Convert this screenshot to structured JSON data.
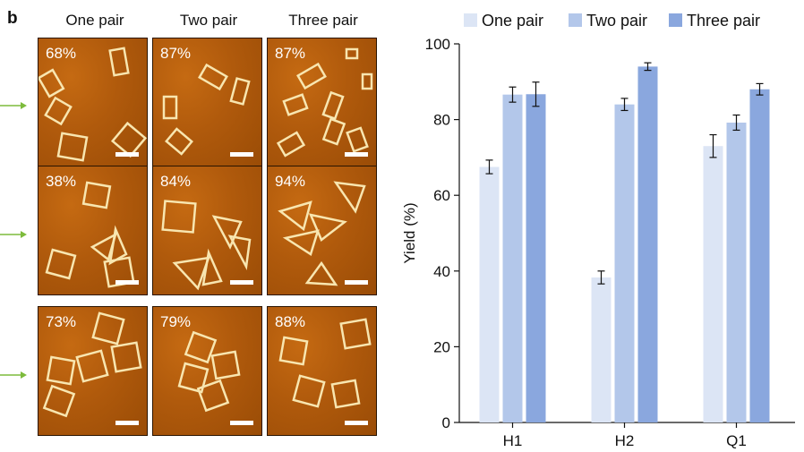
{
  "panel_label": "b",
  "column_headers": [
    "One pair",
    "Two pair",
    "Three pair"
  ],
  "tile_percentages": [
    [
      "68%",
      "87%",
      "87%"
    ],
    [
      "38%",
      "84%",
      "94%"
    ],
    [
      "73%",
      "79%",
      "88%"
    ]
  ],
  "colors": {
    "one_pair": "#dce5f5",
    "two_pair": "#b3c7ea",
    "three_pair": "#8aa7de",
    "arrow": "#7dbb3c",
    "afm_background": "#b05a0c"
  },
  "chart_data": {
    "type": "bar",
    "categories": [
      "H1",
      "H2",
      "Q1"
    ],
    "series": [
      {
        "name": "One pair",
        "values": [
          67.5,
          38.3,
          73.0
        ],
        "errors": [
          1.8,
          1.7,
          3.0
        ]
      },
      {
        "name": "Two pair",
        "values": [
          86.6,
          84.0,
          79.2
        ],
        "errors": [
          2.0,
          1.6,
          2.0
        ]
      },
      {
        "name": "Three pair",
        "values": [
          86.7,
          94.0,
          88.0
        ],
        "errors": [
          3.2,
          1.0,
          1.5
        ]
      }
    ],
    "ylabel": "Yield (%)",
    "xlabel": "",
    "ylim": [
      0,
      100
    ],
    "yticks": [
      0,
      20,
      40,
      60,
      80,
      100
    ],
    "legend": "top"
  }
}
